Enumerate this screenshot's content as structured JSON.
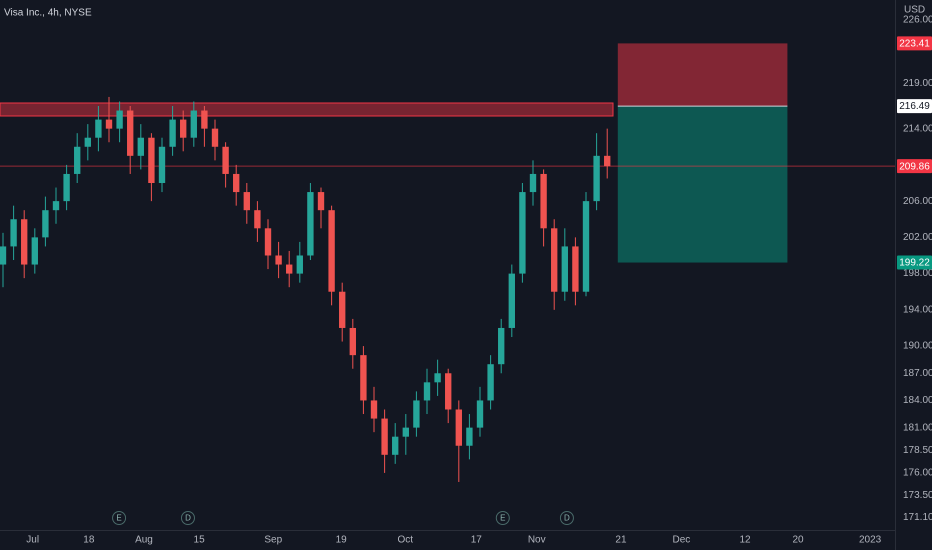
{
  "chart_data": {
    "type": "candlestick",
    "title": "Visa Inc., 4h, NYSE",
    "currency": "USD",
    "up_color": "#26a69a",
    "down_color": "#ef5350",
    "x": [
      0,
      2,
      4,
      6,
      8,
      10,
      12,
      14,
      16,
      18,
      20,
      22,
      24,
      26,
      28,
      30,
      32,
      34,
      36,
      38,
      40,
      42,
      44,
      46,
      48,
      50,
      52,
      54,
      56,
      58,
      60,
      62,
      64,
      66,
      68,
      70,
      72,
      74,
      76,
      78,
      80,
      82,
      84,
      86,
      88,
      90,
      92,
      94,
      96,
      98,
      100,
      102,
      104,
      106,
      108,
      110,
      112,
      114
    ],
    "open": [
      199,
      201,
      204,
      199,
      202,
      205,
      206,
      209,
      212,
      213,
      215,
      214,
      216,
      211,
      213,
      208,
      212,
      215,
      213,
      216,
      214,
      212,
      209,
      207,
      205,
      203,
      200,
      199,
      198,
      200,
      207,
      205,
      196,
      192,
      189,
      184,
      182,
      178,
      180,
      181,
      184,
      186,
      187,
      183,
      179,
      181,
      184,
      188,
      192,
      198,
      207,
      209,
      203,
      196,
      201,
      196,
      206,
      211
    ],
    "high": [
      202.5,
      205.5,
      205,
      203,
      206.5,
      207.5,
      210,
      213.5,
      214.5,
      216.5,
      217.5,
      217,
      216.5,
      214.5,
      213.5,
      213,
      216.5,
      216,
      217,
      216.5,
      215,
      212.5,
      210,
      208,
      206,
      204,
      201.5,
      200.5,
      201.5,
      208,
      207.5,
      205.5,
      197,
      193,
      190,
      185.5,
      183,
      181.5,
      182.5,
      185,
      187.5,
      188.5,
      187.5,
      184,
      182.5,
      185.5,
      189,
      193,
      199,
      208,
      210.5,
      209.5,
      204,
      203,
      202,
      207,
      213.5,
      214
    ],
    "low": [
      196.5,
      199.5,
      197.5,
      198,
      201,
      203.5,
      205,
      208,
      210.5,
      211.5,
      212.5,
      212.5,
      209,
      209.5,
      206,
      207,
      211,
      211.5,
      212,
      212,
      210.5,
      207.5,
      205.5,
      203.5,
      201.5,
      198.5,
      197.5,
      196.5,
      197,
      199.5,
      203,
      194.5,
      190.5,
      187.5,
      182.5,
      180.5,
      176,
      177,
      178,
      180,
      182.5,
      184.5,
      181.5,
      175,
      177.5,
      180,
      183,
      187,
      191,
      197,
      205.5,
      201,
      194,
      195,
      194.5,
      195.5,
      205,
      208.5
    ],
    "close": [
      201,
      204,
      199,
      202,
      205,
      206,
      209,
      212,
      213,
      215,
      214,
      216,
      211,
      213,
      208,
      212,
      215,
      213,
      216,
      214,
      212,
      209,
      207,
      205,
      203,
      200,
      199,
      198,
      200,
      207,
      205,
      196,
      192,
      189,
      184,
      182,
      178,
      180,
      181,
      184,
      186,
      187,
      183,
      179,
      181,
      184,
      188,
      192,
      198,
      207,
      209,
      203,
      196,
      201,
      196,
      206,
      211,
      209.86
    ],
    "last_price": 209.86,
    "position": {
      "stop": 223.41,
      "entry": 216.49,
      "target": 199.22,
      "xrange": [
        116,
        148
      ]
    },
    "events": [
      {
        "label": "E",
        "x": 21.9
      },
      {
        "label": "D",
        "x": 34.9
      },
      {
        "label": "E",
        "x": 94.3
      },
      {
        "label": "D",
        "x": 106.4
      }
    ],
    "xlim": [
      -0.566,
      168.3
    ],
    "ylim": [
      169.7,
      228.2
    ],
    "grid": false,
    "yticks": [
      {
        "value": 226,
        "label": "226.00"
      },
      {
        "value": 219,
        "label": "219.00"
      },
      {
        "value": 214,
        "label": "214.00"
      },
      {
        "value": 206,
        "label": "206.00"
      },
      {
        "value": 202,
        "label": "202.00"
      },
      {
        "value": 198,
        "label": "198.00"
      },
      {
        "value": 194,
        "label": "194.00"
      },
      {
        "value": 190,
        "label": "190.00"
      },
      {
        "value": 187,
        "label": "187.00"
      },
      {
        "value": 184,
        "label": "184.00"
      },
      {
        "value": 181,
        "label": "181.00"
      },
      {
        "value": 178.5,
        "label": "178.50"
      },
      {
        "value": 176,
        "label": "176.00"
      },
      {
        "value": 173.5,
        "label": "173.50"
      },
      {
        "value": 171.1,
        "label": "171.10"
      }
    ],
    "xticks": [
      {
        "value": 5.6,
        "label": "Jul"
      },
      {
        "value": 16.2,
        "label": "18"
      },
      {
        "value": 26.6,
        "label": "Aug"
      },
      {
        "value": 37,
        "label": "15"
      },
      {
        "value": 51,
        "label": "Sep"
      },
      {
        "value": 63.8,
        "label": "19"
      },
      {
        "value": 75.9,
        "label": "Oct"
      },
      {
        "value": 89.3,
        "label": "17"
      },
      {
        "value": 100.7,
        "label": "Nov"
      },
      {
        "value": 116.6,
        "label": "21"
      },
      {
        "value": 128,
        "label": "Dec"
      },
      {
        "value": 140,
        "label": "12"
      },
      {
        "value": 150,
        "label": "20"
      },
      {
        "value": 163.6,
        "label": "2023"
      }
    ]
  }
}
